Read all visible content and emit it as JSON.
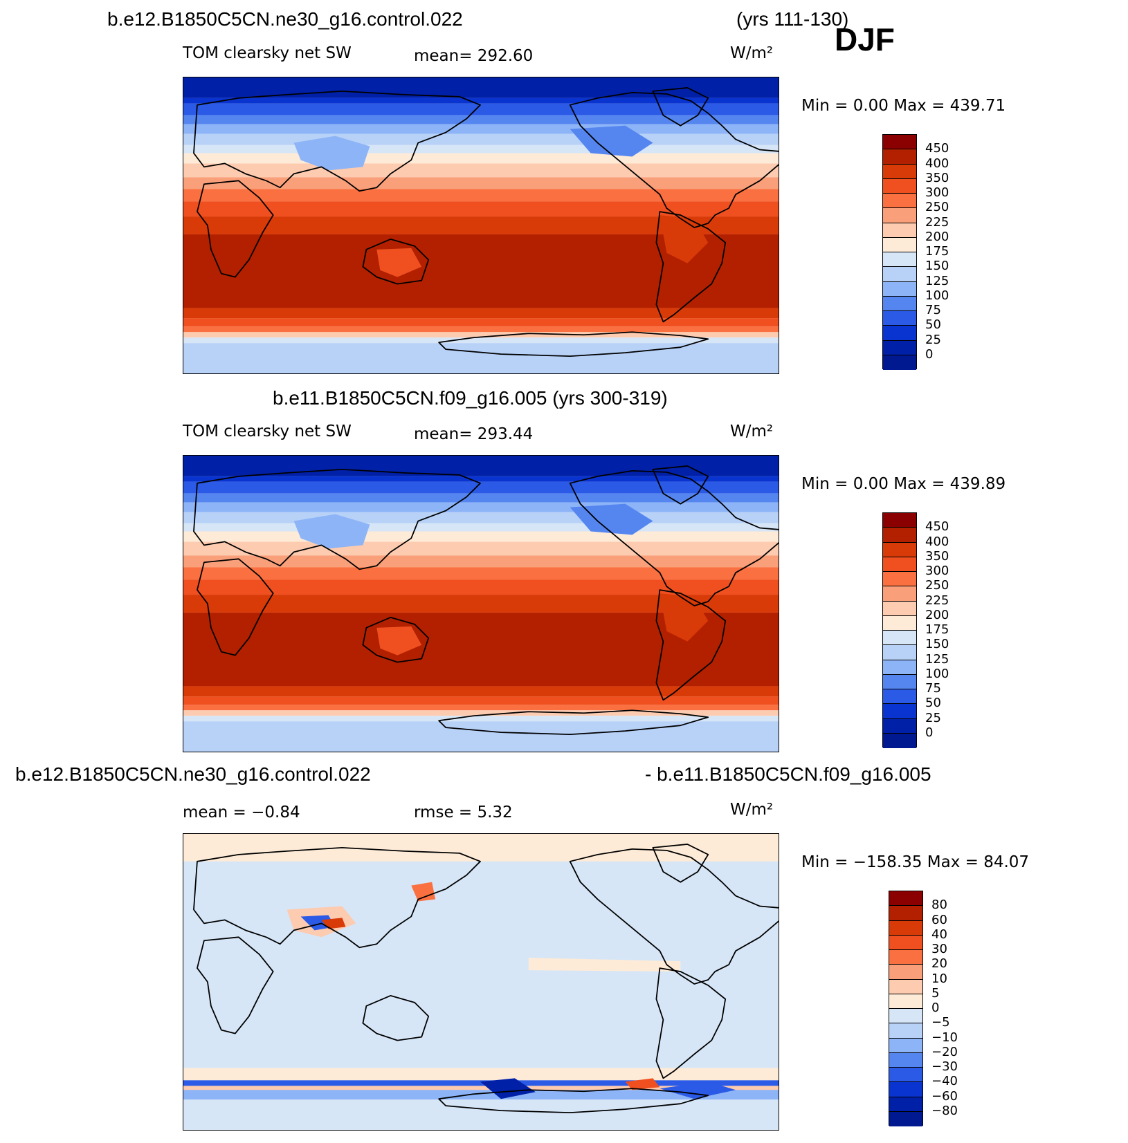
{
  "title_djf": "DJF",
  "panels": [
    {
      "case_title": "b.e12.B1850C5CN.ne30_g16.control.022",
      "years": "(yrs 111-130)",
      "left_label": "TOM clearsky net SW",
      "mean_label": "mean=  292.60",
      "units": "W/m²",
      "minmax": "Min =    0.00 Max =  439.71",
      "colorbar": {
        "labels": [
          "450",
          "400",
          "350",
          "300",
          "250",
          "225",
          "200",
          "175",
          "150",
          "125",
          "100",
          "75",
          "50",
          "25",
          "0"
        ],
        "colors": [
          "#8b0000",
          "#b22000",
          "#d83a08",
          "#f05020",
          "#fa7040",
          "#f9a07a",
          "#fdcbb0",
          "#fdebd8",
          "#d6e6f7",
          "#b7d1f7",
          "#8cb4f7",
          "#5586f0",
          "#2a5ae6",
          "#0a34d0",
          "#0020a8",
          "#001890"
        ]
      },
      "field": "sw"
    },
    {
      "case_title": "b.e11.B1850C5CN.f09_g16.005 (yrs 300-319)",
      "left_label": "TOM clearsky net SW",
      "mean_label": "mean=  293.44",
      "units": "W/m²",
      "minmax": "Min =    0.00 Max =  439.89",
      "colorbar": {
        "labels": [
          "450",
          "400",
          "350",
          "300",
          "250",
          "225",
          "200",
          "175",
          "150",
          "125",
          "100",
          "75",
          "50",
          "25",
          "0"
        ],
        "colors": [
          "#8b0000",
          "#b22000",
          "#d83a08",
          "#f05020",
          "#fa7040",
          "#f9a07a",
          "#fdcbb0",
          "#fdebd8",
          "#d6e6f7",
          "#b7d1f7",
          "#8cb4f7",
          "#5586f0",
          "#2a5ae6",
          "#0a34d0",
          "#0020a8",
          "#001890"
        ]
      },
      "field": "sw"
    },
    {
      "case_title_left": "b.e12.B1850C5CN.ne30_g16.control.022",
      "case_title_right": "- b.e11.B1850C5CN.f09_g16.005",
      "mean_label": "mean =   −0.84",
      "rmse_label": "rmse =    5.32",
      "units": "W/m²",
      "minmax": "Min = −158.35 Max =   84.07",
      "colorbar": {
        "labels": [
          "80",
          "60",
          "40",
          "30",
          "20",
          "10",
          "5",
          "0",
          "−5",
          "−10",
          "−20",
          "−30",
          "−40",
          "−60",
          "−80"
        ],
        "colors": [
          "#8b0000",
          "#b22000",
          "#d83a08",
          "#f05020",
          "#fa7040",
          "#f9a07a",
          "#fdcbb0",
          "#fdebd8",
          "#d6e6f7",
          "#b7d1f7",
          "#8cb4f7",
          "#5586f0",
          "#2a5ae6",
          "#0a34d0",
          "#0020a8",
          "#001890"
        ]
      },
      "field": "diff"
    }
  ]
}
